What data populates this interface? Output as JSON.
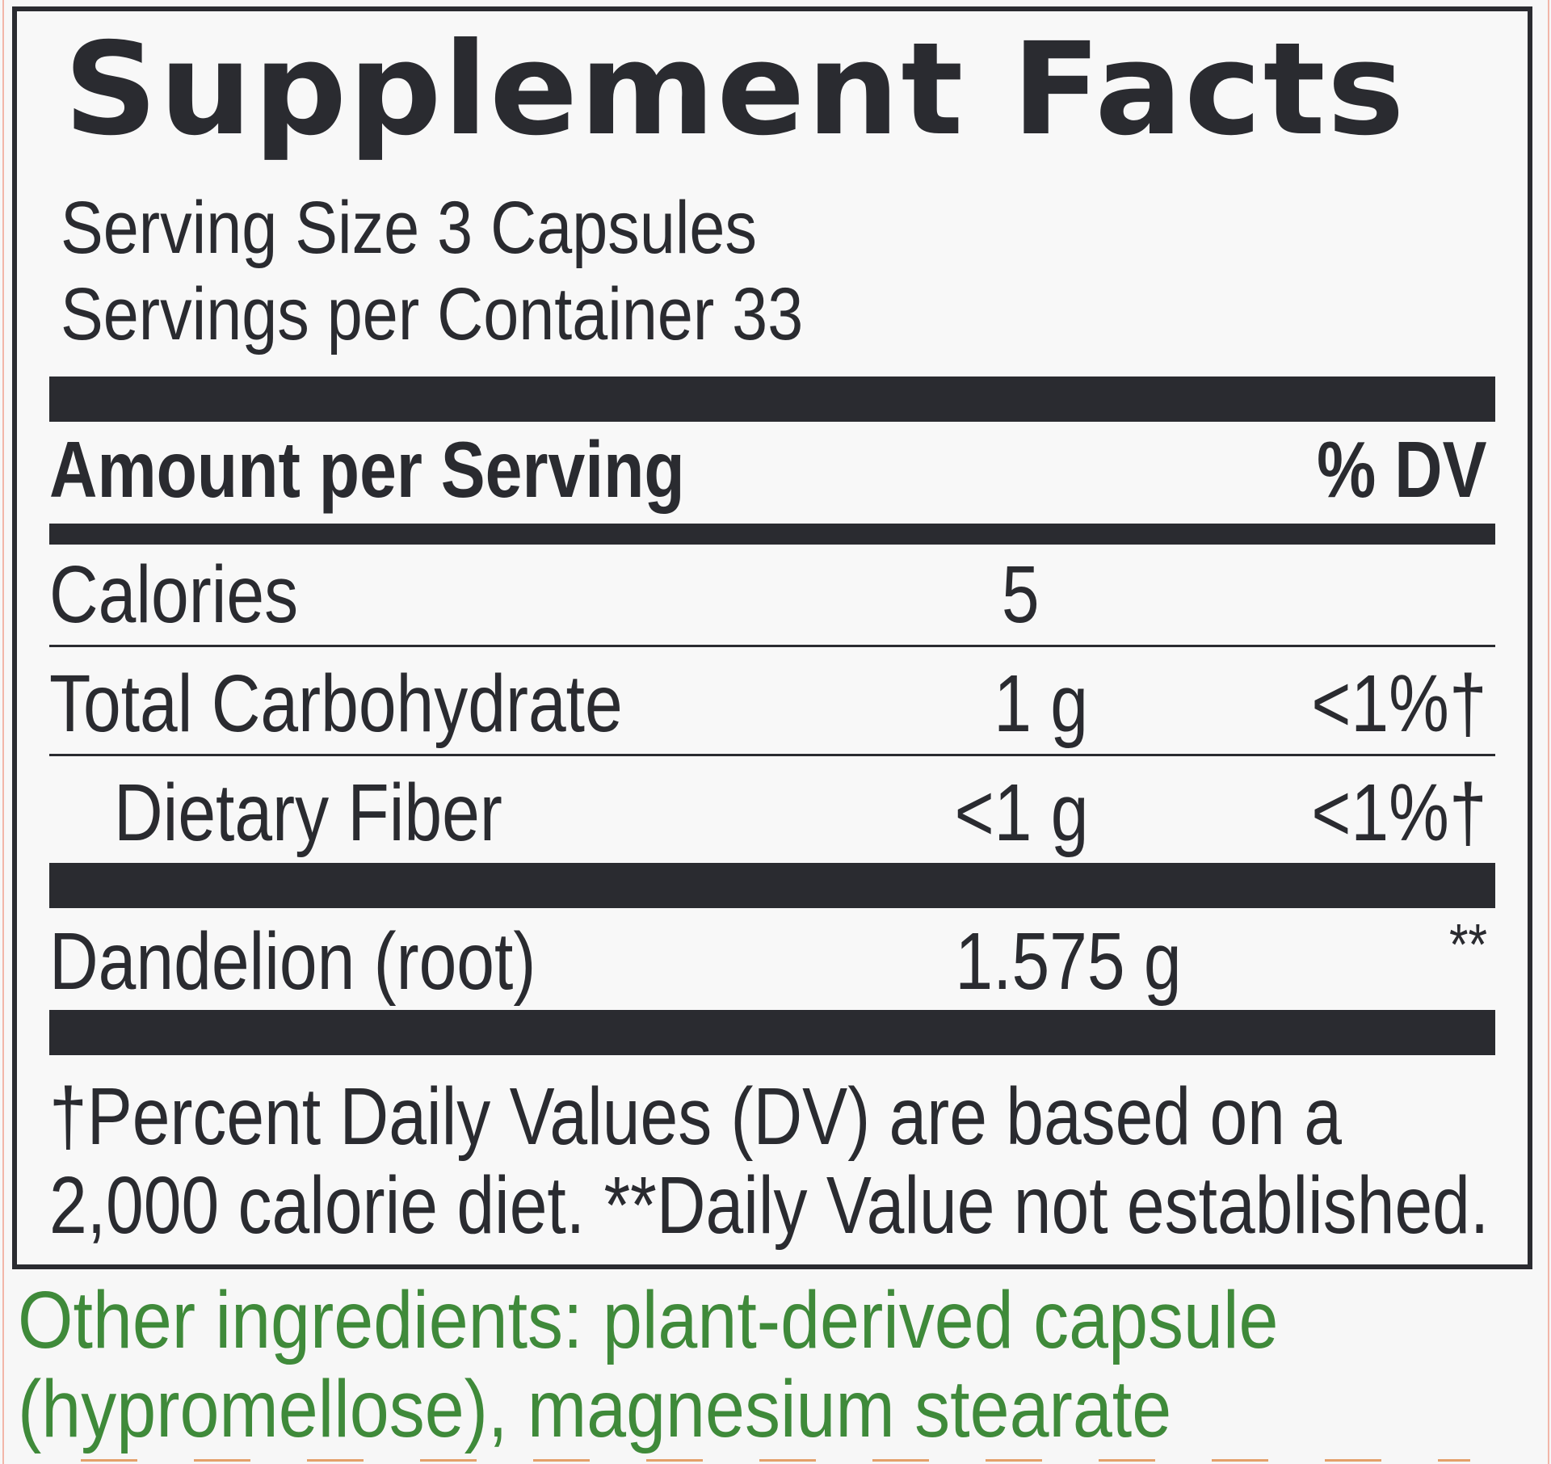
{
  "label": {
    "title": "Supplement Facts",
    "serving_size": "Serving Size 3 Capsules",
    "servings_per_container": "Servings per Container 33",
    "header": {
      "amount": "Amount per Serving",
      "dv": "% DV"
    },
    "rows": [
      {
        "name": "Calories",
        "amount": "5",
        "dv": ""
      },
      {
        "name": "Total Carbohydrate",
        "amount": "1 g",
        "dv": "<1%†"
      },
      {
        "name": "Dietary Fiber",
        "amount": "<1 g",
        "dv": "<1%†"
      },
      {
        "name": "Dandelion (root)",
        "amount": "1.575 g",
        "dv": "**"
      }
    ],
    "footnote_line1": "†Percent Daily Values (DV) are based on a",
    "footnote_line2": "2,000 calorie diet. **Daily Value not established."
  },
  "other_ingredients": {
    "line1": "Other ingredients: plant-derived capsule",
    "line2": "(hypromellose), magnesium stearate"
  },
  "colors": {
    "ink": "#2a2b30",
    "ingredients_green": "#3f8a3a",
    "background": "#f7f7f7"
  }
}
